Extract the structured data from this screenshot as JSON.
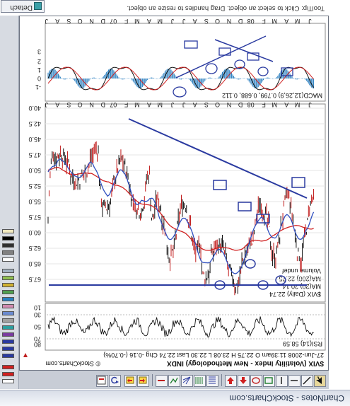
{
  "window": {
    "title": "ChartNotes - StockCharts.com"
  },
  "toolbar": {
    "tools": [
      "pointer-tool",
      "line-tool",
      "horizontal-line-tool",
      "vertical-line-tool",
      "rectangle-tool",
      "ellipse-tool",
      "arrow-up-tool",
      "arrow-down-tool",
      "fibonacci-tool",
      "gann-tool",
      "pitchfork-tool",
      "speed-lines-tool",
      "text-tool",
      "color-tool",
      "style-tool",
      "undo-tool",
      "save-tool"
    ]
  },
  "status": {
    "tooltip": "ToolTip: Click to select an object. Drag handles to resize an object.",
    "detach_label": "Detach"
  },
  "chart": {
    "header": {
      "symbol_line": "$VIX (Volatility Index - New Methodology) INDX",
      "copyright": "© StockCharts.com",
      "quote_line": "27-Jun-2008 11:39am   O 22.75  H 23.08  L 22.30  Last 22.74  Chg -0.16 (-0.70%)"
    },
    "legend": {
      "price": "$VIX (Daily) 22.74",
      "ma_short": "MA(20) 20.14",
      "ma_long": "MA(200) 22.75",
      "volume": "Volume undef"
    },
    "rsi_label": "RSI(14) 58.59",
    "macd_label": "MACD(12,26,9) 0.799, 0.688, 0.112",
    "month_labels": [
      "J",
      "A",
      "S",
      "O",
      "N",
      "D",
      "07",
      "F",
      "M",
      "A",
      "M",
      "J",
      "J",
      "A",
      "S",
      "O",
      "N",
      "D",
      "08",
      "F",
      "M",
      "A",
      "M",
      "J"
    ],
    "price_axis": [
      "40.0",
      "42.5",
      "45.0",
      "47.5",
      "50.0",
      "52.5",
      "55.0",
      "57.5",
      "60.0",
      "62.5",
      "65.0",
      "67.5"
    ],
    "rsi_axis": [
      "10",
      "30",
      "50",
      "70",
      "80"
    ],
    "macd_axis": [
      "-1",
      "0",
      "1",
      "2",
      "3"
    ],
    "colors": {
      "price": "#111111",
      "ma_short": "#3050c0",
      "ma_long": "#d02020",
      "trendline": "#2a3aa0",
      "histogram": "#2a7fc0"
    }
  }
}
